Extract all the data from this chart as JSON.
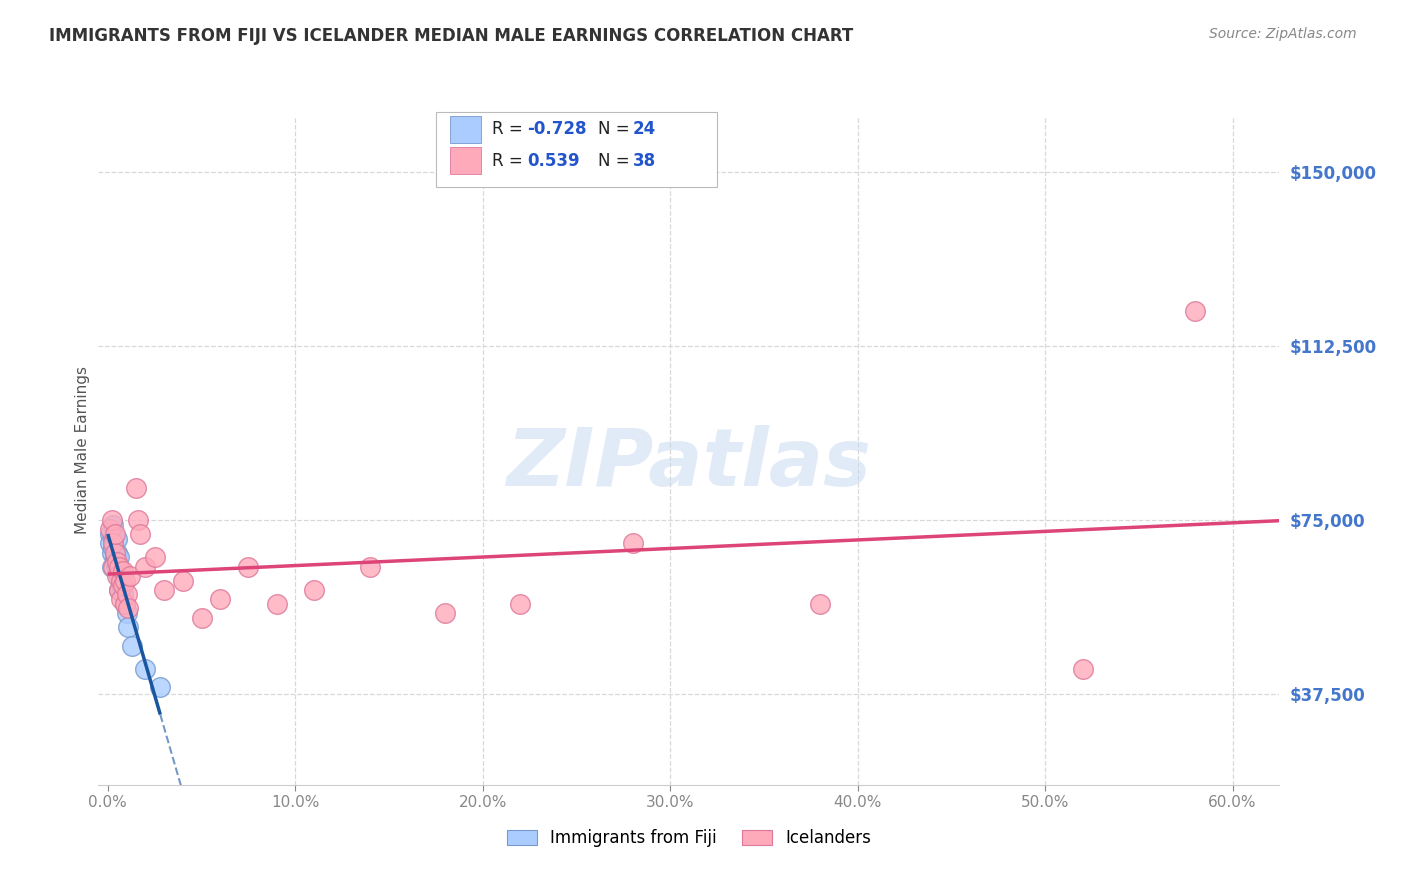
{
  "title": "IMMIGRANTS FROM FIJI VS ICELANDER MEDIAN MALE EARNINGS CORRELATION CHART",
  "source": "Source: ZipAtlas.com",
  "ylabel": "Median Male Earnings",
  "x_tick_labels": [
    "0.0%",
    "10.0%",
    "20.0%",
    "30.0%",
    "40.0%",
    "50.0%",
    "60.0%"
  ],
  "x_ticks": [
    0.0,
    0.1,
    0.2,
    0.3,
    0.4,
    0.5,
    0.6
  ],
  "y_tick_labels": [
    "$37,500",
    "$75,000",
    "$112,500",
    "$150,000"
  ],
  "y_ticks": [
    37500,
    75000,
    112500,
    150000
  ],
  "xlim": [
    -0.005,
    0.625
  ],
  "ylim": [
    18000,
    162000
  ],
  "background_color": "#ffffff",
  "grid_color": "#d8d8d8",
  "watermark_text": "ZIPatlas",
  "fiji_color": "#aaccff",
  "fiji_edge": "#7799cc",
  "icelander_color": "#ffaabb",
  "icelander_edge": "#dd7799",
  "fiji_line_color": "#1a56a0",
  "icelander_line_color": "#dd4477",
  "legend_label1": "Immigrants from Fiji",
  "legend_label2": "Icelanders",
  "fiji_x": [
    0.001,
    0.001,
    0.002,
    0.002,
    0.003,
    0.003,
    0.003,
    0.004,
    0.004,
    0.005,
    0.005,
    0.005,
    0.006,
    0.006,
    0.006,
    0.007,
    0.007,
    0.008,
    0.009,
    0.01,
    0.011,
    0.013,
    0.02,
    0.028
  ],
  "fiji_y": [
    72000,
    70000,
    68000,
    65000,
    74000,
    71000,
    69000,
    67000,
    66000,
    71000,
    68000,
    65000,
    67000,
    63000,
    60000,
    64000,
    61000,
    59000,
    57000,
    55000,
    52000,
    48000,
    43000,
    39000
  ],
  "icelander_x": [
    0.001,
    0.002,
    0.003,
    0.003,
    0.004,
    0.004,
    0.005,
    0.005,
    0.006,
    0.006,
    0.007,
    0.007,
    0.008,
    0.008,
    0.009,
    0.009,
    0.01,
    0.011,
    0.012,
    0.015,
    0.016,
    0.017,
    0.02,
    0.025,
    0.03,
    0.04,
    0.05,
    0.06,
    0.075,
    0.09,
    0.11,
    0.14,
    0.18,
    0.22,
    0.28,
    0.38,
    0.52,
    0.58
  ],
  "icelander_y": [
    73000,
    75000,
    65000,
    70000,
    68000,
    72000,
    66000,
    63000,
    60000,
    65000,
    62000,
    58000,
    64000,
    61000,
    57000,
    62000,
    59000,
    56000,
    63000,
    82000,
    75000,
    72000,
    65000,
    67000,
    60000,
    62000,
    54000,
    58000,
    65000,
    57000,
    60000,
    65000,
    55000,
    57000,
    70000,
    57000,
    43000,
    120000
  ]
}
